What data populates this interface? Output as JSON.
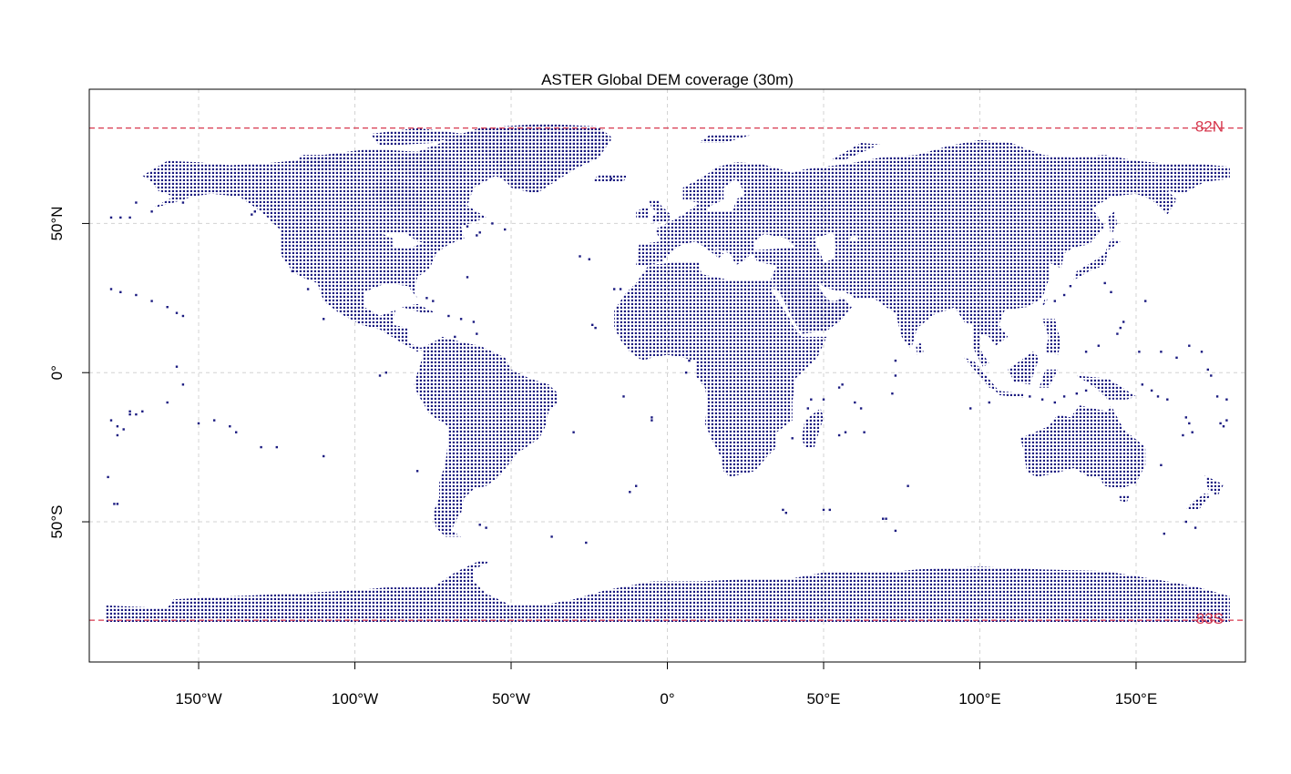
{
  "title": "ASTER Global DEM coverage (30m)",
  "map": {
    "projection": "equirectangular",
    "xlim": [
      -185,
      185
    ],
    "ylim": [
      -97,
      95
    ],
    "grid": true,
    "grid_color": "#d3d3d3",
    "dot_color": "#1a1a80",
    "x_ticks": [
      -150,
      -100,
      -50,
      0,
      50,
      100,
      150
    ],
    "x_tick_labels": [
      "150°W",
      "100°W",
      "50°W",
      "0°",
      "50°E",
      "100°E",
      "150°E"
    ],
    "y_ticks": [
      50,
      0,
      -50
    ],
    "y_tick_labels": [
      "50°N",
      "0°",
      "50°S"
    ],
    "reference_lines": [
      {
        "lat": 82,
        "label": "82N",
        "color": "#d7384e"
      },
      {
        "lat": -83,
        "label": "83S",
        "color": "#d7384e"
      }
    ]
  }
}
